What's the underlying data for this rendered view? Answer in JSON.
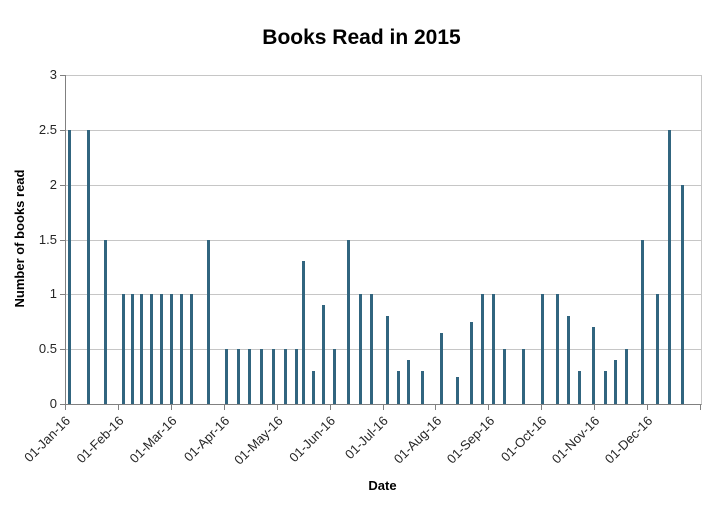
{
  "chart_data": {
    "type": "bar",
    "title": "Books Read in 2015",
    "xlabel": "Date",
    "ylabel": "Number of books read",
    "ylim": [
      0,
      3
    ],
    "ytick_step": 0.5,
    "yticks": [
      0,
      0.5,
      1,
      1.5,
      2,
      2.5,
      3
    ],
    "xticks": [
      "01-Jan-16",
      "01-Feb-16",
      "01-Mar-16",
      "01-Apr-16",
      "01-May-16",
      "01-Jun-16",
      "01-Jul-16",
      "01-Aug-16",
      "01-Sep-16",
      "01-Oct-16",
      "01-Nov-16",
      "01-Dec-16"
    ],
    "grid": true,
    "bar_color": "#31657f",
    "gridline_color": "#c6c6c6",
    "axis_color": "#808080",
    "bars": [
      {
        "x": 0.005,
        "value": 2.5
      },
      {
        "x": 0.035,
        "value": 2.5
      },
      {
        "x": 0.061,
        "value": 1.5
      },
      {
        "x": 0.09,
        "value": 1
      },
      {
        "x": 0.104,
        "value": 1
      },
      {
        "x": 0.118,
        "value": 1
      },
      {
        "x": 0.134,
        "value": 1
      },
      {
        "x": 0.15,
        "value": 1
      },
      {
        "x": 0.165,
        "value": 1
      },
      {
        "x": 0.181,
        "value": 1
      },
      {
        "x": 0.197,
        "value": 1
      },
      {
        "x": 0.224,
        "value": 1.5
      },
      {
        "x": 0.252,
        "value": 0.5
      },
      {
        "x": 0.271,
        "value": 0.5
      },
      {
        "x": 0.288,
        "value": 0.5
      },
      {
        "x": 0.307,
        "value": 0.5
      },
      {
        "x": 0.326,
        "value": 0.5
      },
      {
        "x": 0.345,
        "value": 0.5
      },
      {
        "x": 0.362,
        "value": 0.5
      },
      {
        "x": 0.373,
        "value": 1.3
      },
      {
        "x": 0.389,
        "value": 0.3
      },
      {
        "x": 0.405,
        "value": 0.9
      },
      {
        "x": 0.422,
        "value": 0.5
      },
      {
        "x": 0.444,
        "value": 1.5
      },
      {
        "x": 0.463,
        "value": 1
      },
      {
        "x": 0.48,
        "value": 1
      },
      {
        "x": 0.506,
        "value": 0.8
      },
      {
        "x": 0.523,
        "value": 0.3
      },
      {
        "x": 0.539,
        "value": 0.4
      },
      {
        "x": 0.561,
        "value": 0.3
      },
      {
        "x": 0.591,
        "value": 0.65
      },
      {
        "x": 0.616,
        "value": 0.25
      },
      {
        "x": 0.638,
        "value": 0.75
      },
      {
        "x": 0.655,
        "value": 1
      },
      {
        "x": 0.672,
        "value": 1
      },
      {
        "x": 0.69,
        "value": 0.5
      },
      {
        "x": 0.72,
        "value": 0.5
      },
      {
        "x": 0.75,
        "value": 1
      },
      {
        "x": 0.773,
        "value": 1
      },
      {
        "x": 0.79,
        "value": 0.8
      },
      {
        "x": 0.808,
        "value": 0.3
      },
      {
        "x": 0.83,
        "value": 0.7
      },
      {
        "x": 0.849,
        "value": 0.3
      },
      {
        "x": 0.864,
        "value": 0.4
      },
      {
        "x": 0.882,
        "value": 0.5
      },
      {
        "x": 0.907,
        "value": 1.5
      },
      {
        "x": 0.931,
        "value": 1
      },
      {
        "x": 0.95,
        "value": 2.5
      },
      {
        "x": 0.97,
        "value": 2
      }
    ]
  }
}
